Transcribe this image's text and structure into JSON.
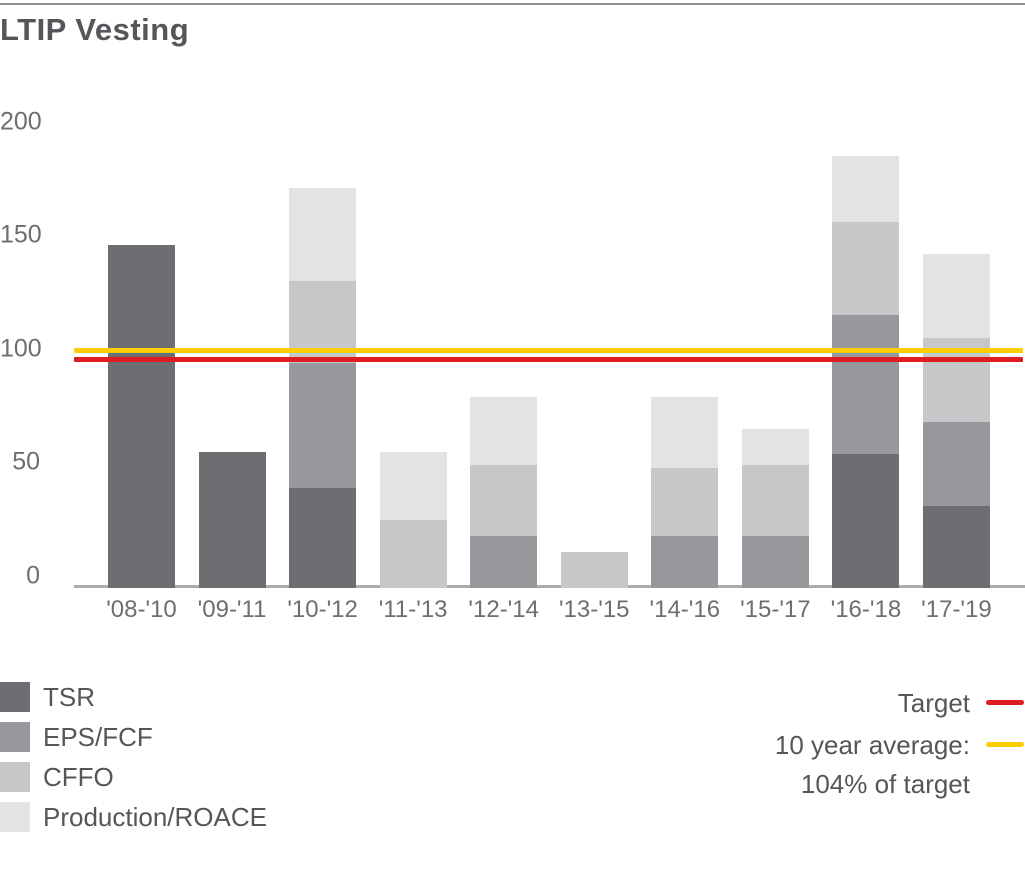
{
  "page": {
    "title": "LTIP Vesting"
  },
  "chart_data": {
    "type": "bar",
    "stacked": true,
    "title": "LTIP Vesting",
    "categories": [
      "'08-'10",
      "'09-'11",
      "'10-'12",
      "'11-'13",
      "'12-'14",
      "'13-'15",
      "'14-'16",
      "'15-'17",
      "'16-'18",
      "'17-'19"
    ],
    "series": [
      {
        "name": "TSR",
        "color": "#6c6e71",
        "values": [
          151,
          60,
          44,
          0,
          0,
          0,
          0,
          0,
          59,
          36
        ]
      },
      {
        "name": "EPS/FCF",
        "color": "#97989b",
        "values": [
          0,
          0,
          55,
          0,
          23,
          0,
          23,
          23,
          61,
          37
        ]
      },
      {
        "name": "CFFO",
        "color": "#c6c7c9",
        "values": [
          0,
          0,
          36,
          30,
          31,
          16,
          30,
          31,
          41,
          37
        ]
      },
      {
        "name": "Production/ROACE",
        "color": "#e2e3e5",
        "values": [
          0,
          0,
          41,
          30,
          30,
          0,
          31,
          16,
          29,
          37
        ]
      }
    ],
    "stack_totals": [
      151,
      60,
      176,
      60,
      84,
      16,
      84,
      70,
      190,
      147
    ],
    "yticks": [
      0,
      50,
      100,
      150,
      200
    ],
    "ylim": [
      0,
      210
    ],
    "grid": false,
    "reference_lines": [
      {
        "label": "Target",
        "value": 100,
        "color": "#dd1d21"
      },
      {
        "label": "10 year average: 104% of target",
        "value": 104,
        "color": "#fbce07"
      }
    ],
    "legend_position": "bottom"
  },
  "legend": {
    "target_label": "Target",
    "average_label_line1": "10 year average:",
    "average_label_line2": "104% of target"
  }
}
